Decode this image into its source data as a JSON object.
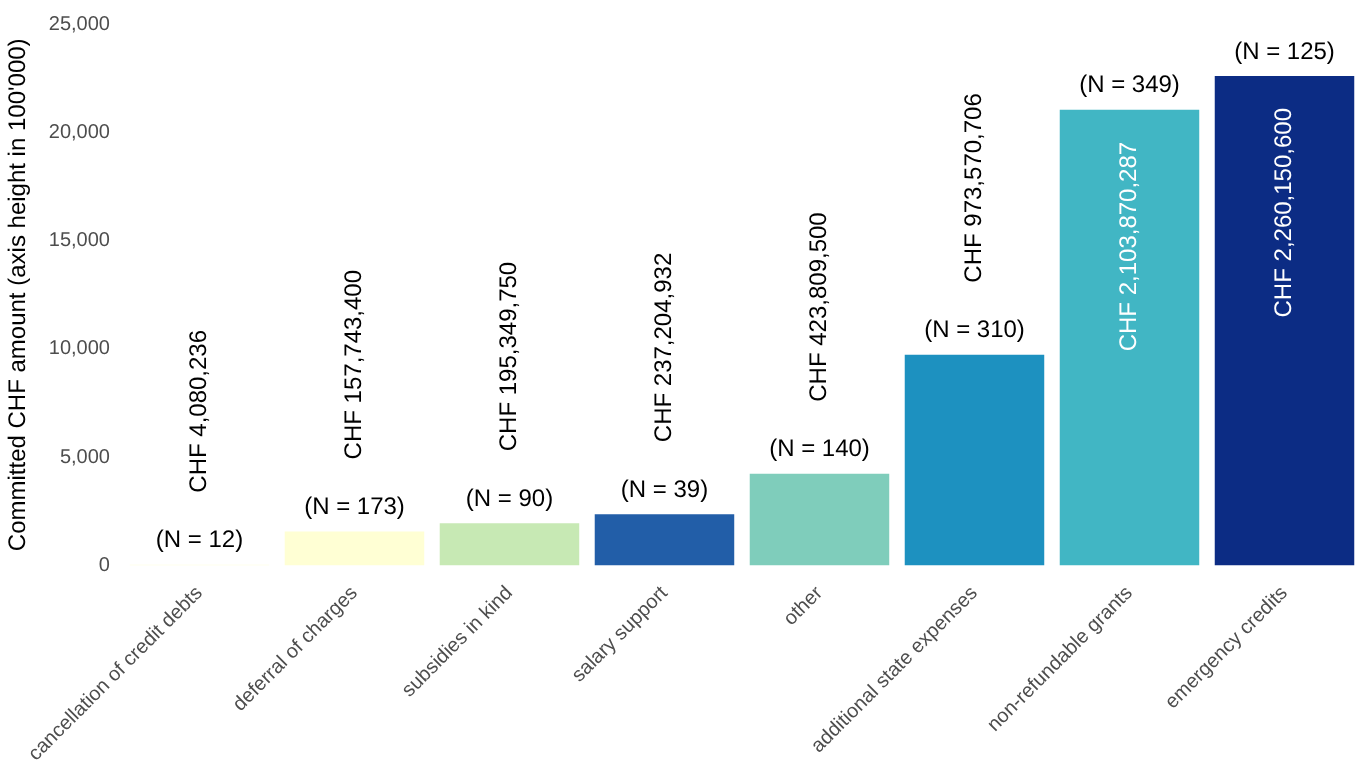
{
  "chart_data": {
    "type": "bar",
    "ylabel": "Committed CHF amount (axis height in 100'000)",
    "categories": [
      "cancellation of credit debts",
      "deferral of charges",
      "subsidies in kind",
      "salary support",
      "other",
      "additional state expenses",
      "non-refundable grants",
      "emergency credits"
    ],
    "values": [
      40.80236,
      1577.434,
      1953.4975,
      2372.04932,
      4238.095,
      9735.70706,
      21038.70287,
      22601.506
    ],
    "colors": [
      "#ffffd9",
      "#ffffd4",
      "#c7e9b4",
      "#225ea8",
      "#7fcdbb",
      "#1d91c0",
      "#41b6c4",
      "#0c2c84"
    ],
    "value_labels": [
      "CHF 4,080,236",
      "CHF 157,743,400",
      "CHF 195,349,750",
      "CHF 237,204,932",
      "CHF 423,809,500",
      "CHF 973,570,706",
      "CHF 2,103,870,287",
      "CHF 2,260,150,600"
    ],
    "annotations": [
      {
        "text": "(N = 12)",
        "x": "cancellation of credit debts",
        "y": 40.80236
      },
      {
        "text": "(N = 173)",
        "x": "deferral of charges",
        "y": 1577.434
      },
      {
        "text": "(N = 90)",
        "x": "subsidies in kind",
        "y": 1953.4975
      },
      {
        "text": "(N = 39)",
        "x": "salary support",
        "y": 2372.04932
      },
      {
        "text": "(N = 140)",
        "x": "other",
        "y": 4238.095
      },
      {
        "text": "(N = 310)",
        "x": "additional state expenses",
        "y": 9735.70706
      },
      {
        "text": "(N = 349)",
        "x": "non-refundable grants",
        "y": 21038.70287
      },
      {
        "text": "(N = 125)",
        "x": "emergency credits",
        "y": 22601.506
      }
    ],
    "ylim": [
      0,
      25000
    ],
    "yticks": [
      0,
      {
        "value": 5000,
        "label": "5,000"
      },
      {
        "value": 10000,
        "label": "10,000"
      },
      {
        "value": 15000,
        "label": "15,000"
      },
      {
        "value": 20000,
        "label": "20,000"
      },
      {
        "value": 25000,
        "label": "25,000"
      }
    ],
    "grid": false,
    "legend": false
  }
}
